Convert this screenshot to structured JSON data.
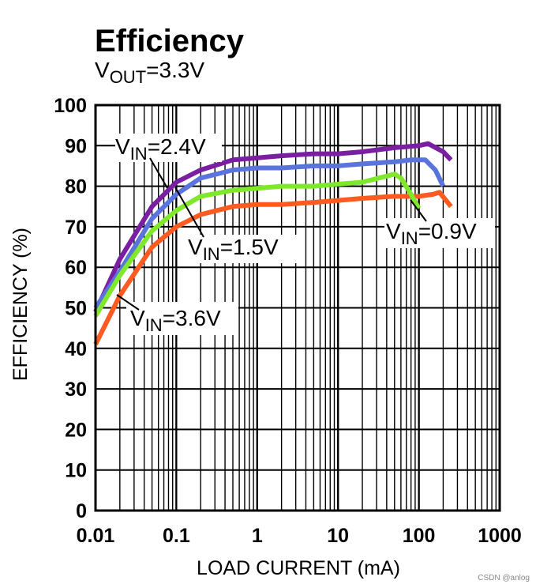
{
  "chart_data": {
    "type": "line",
    "title": "Efficiency",
    "subtitle": {
      "prefix": "V",
      "sub": "OUT",
      "suffix": "=3.3V"
    },
    "xlabel": "LOAD CURRENT (mA)",
    "ylabel": "EFFICIENCY (%)",
    "xscale": "log",
    "xlim": [
      0.01,
      1000
    ],
    "ylim": [
      0,
      100
    ],
    "grid": true,
    "x_ticks": [
      {
        "value": 0.01,
        "label": "0.01"
      },
      {
        "value": 0.1,
        "label": "0.1"
      },
      {
        "value": 1,
        "label": "1"
      },
      {
        "value": 10,
        "label": "10"
      },
      {
        "value": 100,
        "label": "100"
      },
      {
        "value": 1000,
        "label": "1000"
      }
    ],
    "y_ticks": [
      {
        "value": 0,
        "label": "0"
      },
      {
        "value": 10,
        "label": "10"
      },
      {
        "value": 20,
        "label": "20"
      },
      {
        "value": 30,
        "label": "30"
      },
      {
        "value": 40,
        "label": "40"
      },
      {
        "value": 50,
        "label": "50"
      },
      {
        "value": 60,
        "label": "60"
      },
      {
        "value": 70,
        "label": "70"
      },
      {
        "value": 80,
        "label": "80"
      },
      {
        "value": 90,
        "label": "90"
      },
      {
        "value": 100,
        "label": "100"
      }
    ],
    "series": [
      {
        "name": "VIN=3.6V",
        "label": {
          "prefix": "V",
          "sub": "IN",
          "suffix": "=3.6V"
        },
        "color": "#ff5a1f",
        "x": [
          0.01,
          0.02,
          0.05,
          0.1,
          0.2,
          0.5,
          1,
          2,
          5,
          10,
          20,
          50,
          100,
          150,
          180,
          250
        ],
        "y": [
          41,
          53,
          65,
          70,
          73,
          75,
          75.5,
          75.5,
          76,
          76.5,
          77,
          77.5,
          77.5,
          78,
          78.5,
          75
        ]
      },
      {
        "name": "VIN=2.4V",
        "label": {
          "prefix": "V",
          "sub": "IN",
          "suffix": "=2.4V"
        },
        "color": "#7a1fa2",
        "x": [
          0.01,
          0.02,
          0.05,
          0.1,
          0.2,
          0.5,
          1,
          2,
          5,
          10,
          20,
          50,
          100,
          130,
          200,
          250
        ],
        "y": [
          49,
          62,
          75,
          81,
          84,
          86.5,
          87,
          87.5,
          88,
          88,
          88.5,
          89.5,
          90,
          90.5,
          88.5,
          86.5
        ]
      },
      {
        "name": "VIN=1.5V",
        "label": {
          "prefix": "V",
          "sub": "IN",
          "suffix": "=1.5V"
        },
        "color": "#5a73dd",
        "x": [
          0.01,
          0.02,
          0.05,
          0.1,
          0.2,
          0.5,
          1,
          2,
          5,
          10,
          20,
          50,
          80,
          120,
          160,
          200
        ],
        "y": [
          50,
          59,
          72,
          78,
          82,
          84,
          84.5,
          84.5,
          85,
          85,
          85.5,
          86,
          86.5,
          86.5,
          84,
          80
        ]
      },
      {
        "name": "VIN=0.9V",
        "label": {
          "prefix": "V",
          "sub": "IN",
          "suffix": "=0.9V"
        },
        "color": "#7fe82a",
        "x": [
          0.01,
          0.02,
          0.05,
          0.1,
          0.2,
          0.5,
          1,
          2,
          5,
          10,
          20,
          40,
          50,
          60,
          80,
          100
        ],
        "y": [
          48,
          58,
          69,
          74,
          77.5,
          79,
          79.5,
          80,
          80,
          80.5,
          81,
          82.5,
          83,
          82,
          78,
          74.5
        ]
      }
    ]
  },
  "watermark": "CSDN @anlog"
}
